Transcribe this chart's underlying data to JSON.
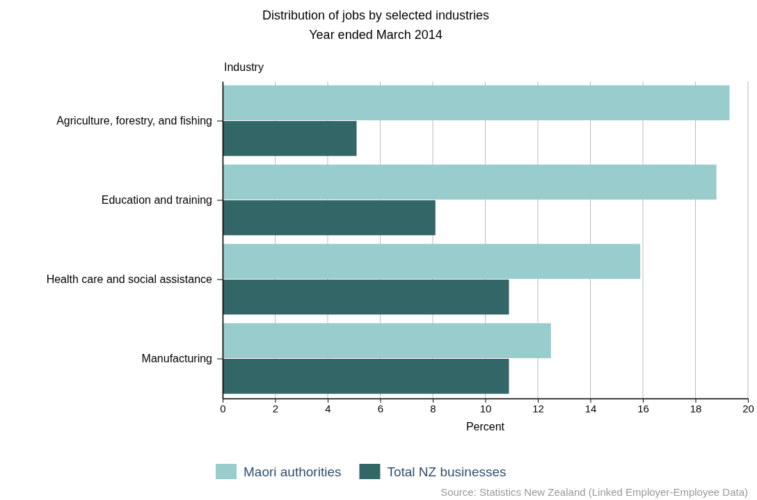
{
  "chart_data": {
    "type": "bar",
    "orientation": "horizontal",
    "title": "Distribution of jobs by selected industries",
    "subtitle": "Year ended March 2014",
    "ylabel": "Industry",
    "xlabel": "Percent",
    "categories": [
      "Agriculture, forestry, and fishing",
      "Education and training",
      "Health care and social assistance",
      "Manufacturing"
    ],
    "series": [
      {
        "name": "Maori authorities",
        "color": "#99cccc",
        "values": [
          19.3,
          18.8,
          15.9,
          12.5
        ]
      },
      {
        "name": "Total NZ businesses",
        "color": "#336666",
        "values": [
          5.1,
          8.1,
          10.9,
          10.9
        ]
      }
    ],
    "xlim": [
      0,
      20
    ],
    "xticks": [
      0,
      2,
      4,
      6,
      8,
      10,
      12,
      14,
      16,
      18,
      20
    ],
    "grid": "x",
    "legend": "bottom",
    "annotations": [
      "Source: Statistics New Zealand (Linked Employer-Employee Data)"
    ]
  }
}
